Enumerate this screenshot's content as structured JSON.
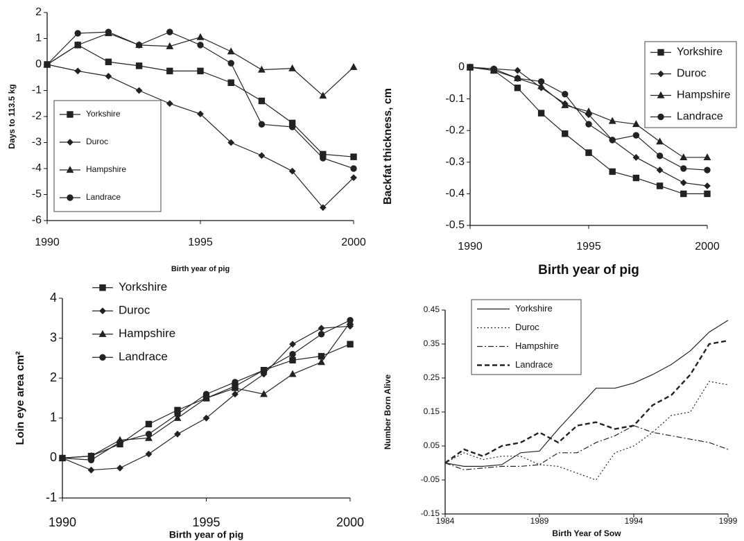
{
  "chart_data": [
    {
      "type": "line",
      "xlabel": "Birth year of pig",
      "ylabel": "Days to 113.5 kg",
      "x": [
        1990,
        1991,
        1992,
        1993,
        1994,
        1995,
        1996,
        1997,
        1998,
        1999,
        2000
      ],
      "xlim": [
        1990,
        2000
      ],
      "xticks": [
        1990,
        1995,
        2000
      ],
      "ylim": [
        -6,
        2
      ],
      "yticks": [
        -6,
        -5,
        -4,
        -3,
        -2,
        -1,
        0,
        1,
        2
      ],
      "legend": "lower left",
      "series": [
        {
          "name": "Yorkshire",
          "color": "#222",
          "marker": "square",
          "dash": "solid",
          "values": [
            0,
            0.75,
            0.1,
            -0.05,
            -0.25,
            -0.25,
            -0.7,
            -1.4,
            -2.25,
            -3.45,
            -3.55
          ]
        },
        {
          "name": "Duroc",
          "color": "#222",
          "marker": "diamond",
          "dash": "solid",
          "values": [
            0,
            -0.25,
            -0.45,
            -1.0,
            -1.5,
            -1.9,
            -3.0,
            -3.5,
            -4.1,
            -5.5,
            -4.35
          ]
        },
        {
          "name": "Hampshire",
          "color": "#222",
          "marker": "triangle",
          "dash": "solid",
          "values": [
            0,
            0.75,
            1.2,
            0.75,
            0.7,
            1.05,
            0.5,
            -0.2,
            -0.15,
            -1.2,
            -0.1
          ]
        },
        {
          "name": "Landrace",
          "color": "#222",
          "marker": "circle",
          "dash": "solid",
          "values": [
            0,
            1.2,
            1.25,
            0.75,
            1.25,
            0.75,
            0.05,
            -2.3,
            -2.4,
            -3.6,
            -4.0
          ]
        }
      ]
    },
    {
      "type": "line",
      "xlabel": "Birth year of pig",
      "ylabel": "Backfat thickness, cm",
      "x": [
        1990,
        1991,
        1992,
        1993,
        1994,
        1995,
        1996,
        1997,
        1998,
        1999,
        2000
      ],
      "xlim": [
        1990,
        2000
      ],
      "xticks": [
        1990,
        1995,
        2000
      ],
      "ylim": [
        -0.5,
        0
      ],
      "yticks": [
        0,
        -0.1,
        -0.2,
        -0.3,
        -0.4,
        -0.5
      ],
      "legend": "upper right",
      "series": [
        {
          "name": "Yorkshire",
          "color": "#222",
          "marker": "square",
          "dash": "solid",
          "values": [
            0,
            -0.01,
            -0.065,
            -0.145,
            -0.21,
            -0.27,
            -0.33,
            -0.35,
            -0.375,
            -0.4,
            -0.4
          ]
        },
        {
          "name": "Duroc",
          "color": "#222",
          "marker": "diamond",
          "dash": "solid",
          "values": [
            0,
            -0.005,
            -0.01,
            -0.065,
            -0.115,
            -0.15,
            -0.23,
            -0.285,
            -0.325,
            -0.365,
            -0.375
          ]
        },
        {
          "name": "Hampshire",
          "color": "#222",
          "marker": "triangle",
          "dash": "solid",
          "values": [
            0,
            -0.01,
            -0.035,
            -0.06,
            -0.12,
            -0.14,
            -0.17,
            -0.18,
            -0.235,
            -0.285,
            -0.285
          ]
        },
        {
          "name": "Landrace",
          "color": "#222",
          "marker": "circle",
          "dash": "solid",
          "values": [
            0,
            -0.005,
            -0.035,
            -0.045,
            -0.085,
            -0.18,
            -0.23,
            -0.215,
            -0.28,
            -0.32,
            -0.325
          ]
        }
      ]
    },
    {
      "type": "line",
      "xlabel": "Birth year of pig",
      "ylabel": "Loin eye area cm²",
      "x": [
        1990,
        1991,
        1992,
        1993,
        1994,
        1995,
        1996,
        1997,
        1998,
        1999,
        2000
      ],
      "xlim": [
        1990,
        2000
      ],
      "xticks": [
        1990,
        1995,
        2000
      ],
      "ylim": [
        -1,
        4
      ],
      "yticks": [
        -1,
        0,
        1,
        2,
        3,
        4
      ],
      "legend": "upper left",
      "series": [
        {
          "name": "Yorkshire",
          "color": "#222",
          "marker": "square",
          "dash": "solid",
          "values": [
            0,
            0.05,
            0.35,
            0.85,
            1.2,
            1.5,
            1.8,
            2.2,
            2.45,
            2.55,
            2.85
          ]
        },
        {
          "name": "Duroc",
          "color": "#222",
          "marker": "diamond",
          "dash": "solid",
          "values": [
            0,
            -0.3,
            -0.25,
            0.1,
            0.6,
            1.0,
            1.6,
            2.1,
            2.85,
            3.25,
            3.3
          ]
        },
        {
          "name": "Hampshire",
          "color": "#222",
          "marker": "triangle",
          "dash": "solid",
          "values": [
            0,
            0.05,
            0.45,
            0.5,
            1.0,
            1.5,
            1.75,
            1.6,
            2.1,
            2.4,
            3.4
          ]
        },
        {
          "name": "Landrace",
          "color": "#222",
          "marker": "circle",
          "dash": "solid",
          "values": [
            0,
            -0.05,
            0.4,
            0.6,
            1.1,
            1.6,
            1.9,
            2.2,
            2.6,
            3.1,
            3.45
          ]
        }
      ]
    },
    {
      "type": "line",
      "xlabel": "Birth Year of Sow",
      "ylabel": "Number Born Alive",
      "x": [
        1984,
        1985,
        1986,
        1987,
        1988,
        1989,
        1990,
        1991,
        1992,
        1993,
        1994,
        1995,
        1996,
        1997,
        1998,
        1999
      ],
      "xlim": [
        1984,
        1999
      ],
      "xticks": [
        1984,
        1989,
        1994,
        1999
      ],
      "ylim": [
        -0.15,
        0.45
      ],
      "yticks": [
        -0.15,
        -0.05,
        0.05,
        0.15,
        0.25,
        0.35,
        0.45
      ],
      "legend": "upper left",
      "series": [
        {
          "name": "Yorkshire",
          "color": "#222",
          "marker": "none",
          "dash": "solid",
          "values": [
            0.0,
            -0.01,
            -0.01,
            -0.005,
            0.03,
            0.035,
            0.1,
            0.16,
            0.22,
            0.22,
            0.235,
            0.26,
            0.29,
            0.33,
            0.385,
            0.42
          ]
        },
        {
          "name": "Duroc",
          "color": "#222",
          "marker": "none",
          "dash": "dotted",
          "values": [
            0.0,
            0.03,
            0.01,
            0.02,
            0.02,
            -0.005,
            -0.01,
            -0.03,
            -0.05,
            0.03,
            0.05,
            0.09,
            0.14,
            0.15,
            0.24,
            0.23
          ]
        },
        {
          "name": "Hampshire",
          "color": "#222",
          "marker": "none",
          "dash": "dashdot",
          "values": [
            0.0,
            -0.02,
            -0.015,
            -0.01,
            -0.01,
            -0.005,
            0.03,
            0.03,
            0.06,
            0.08,
            0.11,
            0.09,
            0.08,
            0.07,
            0.06,
            0.04
          ]
        },
        {
          "name": "Landrace",
          "color": "#222",
          "marker": "none",
          "dash": "dashed",
          "values": [
            0.0,
            0.04,
            0.02,
            0.05,
            0.06,
            0.09,
            0.06,
            0.11,
            0.12,
            0.1,
            0.11,
            0.17,
            0.2,
            0.26,
            0.35,
            0.36
          ]
        }
      ]
    }
  ]
}
